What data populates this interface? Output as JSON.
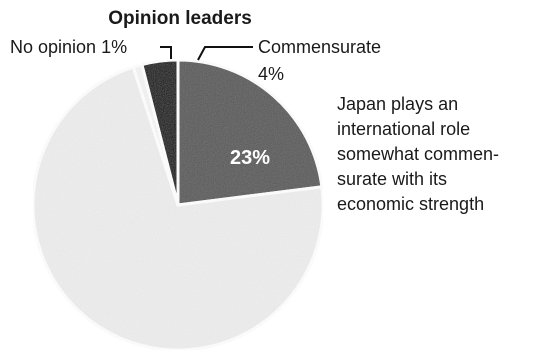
{
  "chart_data": {
    "type": "pie",
    "title": "Opinion leaders",
    "slices": [
      {
        "label": "Japan plays an international role somewhat commensurate with its economic strength",
        "value": 23,
        "color": "#5a5a5a"
      },
      {
        "label": "",
        "value": 72,
        "color": "#eeeeee"
      },
      {
        "label": "No opinion",
        "value": 1,
        "color": "#f4f4f4"
      },
      {
        "label": "Commensurate",
        "value": 4,
        "color": "#111111"
      }
    ],
    "labels": {
      "no_opinion": "No opinion 1%",
      "commensurate_line1": "Commensurate",
      "commensurate_line2": "4%",
      "somewhat_lines": [
        "Japan plays an",
        "international role",
        "somewhat commen-",
        "surate with its",
        "economic strength"
      ],
      "somewhat_value": "23%"
    }
  }
}
